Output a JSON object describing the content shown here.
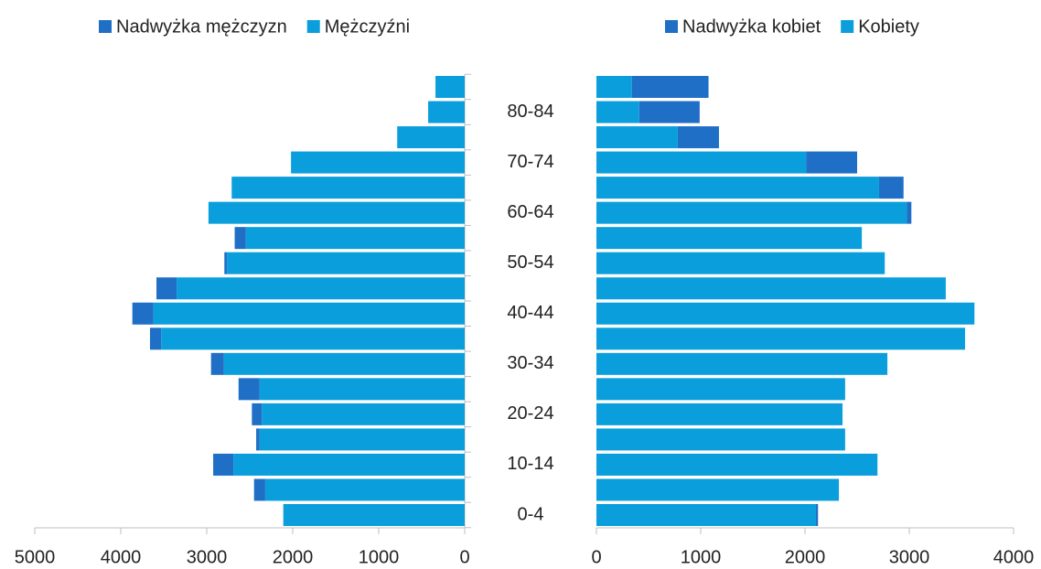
{
  "chart_data": [
    {
      "type": "bar",
      "orientation": "horizontal",
      "stacked": true,
      "categories": [
        "0-4",
        null,
        "10-14",
        null,
        "20-24",
        null,
        "30-34",
        null,
        "40-44",
        null,
        "50-54",
        null,
        "60-64",
        null,
        "70-74",
        null,
        "80-84",
        null
      ],
      "series": [
        {
          "name": "Nadwyżka mężczyzn",
          "color": "#1f6fc6",
          "values": [
            0,
            130,
            235,
            40,
            115,
            245,
            150,
            130,
            245,
            235,
            30,
            130,
            0,
            0,
            0,
            0,
            0,
            0
          ]
        },
        {
          "name": "Mężczyźni",
          "color": "#0a9fdc",
          "values": [
            2110,
            2320,
            2690,
            2385,
            2360,
            2385,
            2800,
            3530,
            3620,
            3350,
            2765,
            2545,
            2980,
            2710,
            2020,
            785,
            425,
            340
          ]
        }
      ],
      "xlim": [
        5000,
        0
      ],
      "xticks": [
        5000,
        4000,
        3000,
        2000,
        1000,
        0
      ],
      "legend": "top"
    },
    {
      "type": "bar",
      "orientation": "horizontal",
      "stacked": true,
      "series": [
        {
          "name": "Nadwyżka kobiet",
          "color": "#1f6fc6",
          "values": [
            20,
            0,
            0,
            0,
            0,
            0,
            0,
            0,
            0,
            0,
            0,
            0,
            45,
            235,
            490,
            395,
            580,
            735
          ]
        },
        {
          "name": "Kobiety",
          "color": "#0a9fdc",
          "values": [
            2105,
            2325,
            2695,
            2385,
            2360,
            2385,
            2790,
            3535,
            3625,
            3350,
            2765,
            2545,
            2975,
            2710,
            2010,
            780,
            410,
            340
          ]
        }
      ],
      "xlim": [
        0,
        4000
      ],
      "xticks": [
        0,
        1000,
        2000,
        3000,
        4000
      ],
      "legend": "top"
    }
  ]
}
